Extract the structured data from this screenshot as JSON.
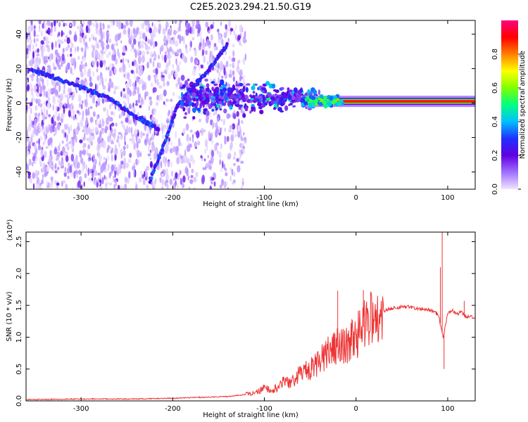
{
  "title": "C2E5.2023.294.21.50.G19",
  "colors": {
    "snr_line": "#ee3333",
    "axis": "#000000",
    "background": "#ffffff"
  },
  "chart_data": [
    {
      "type": "heatmap",
      "xlabel": "Height of straight line (km)",
      "ylabel": "Frequency (Hz)",
      "xlim": [
        -360,
        130
      ],
      "ylim": [
        -50,
        48
      ],
      "xticks": [
        -300,
        -200,
        -100,
        0,
        100
      ],
      "yticks": [
        -40,
        -20,
        0,
        20,
        40
      ],
      "colorbar": {
        "label": "Normalized spectral amplitude",
        "range": [
          0.0,
          1.0
        ],
        "ticks": [
          "0.0",
          "0.2",
          "0.4",
          "0.6",
          "0.8"
        ],
        "colormap": [
          "#f0e4ff",
          "#a070ff",
          "#6000e0",
          "#2030ff",
          "#00c0ff",
          "#00ff80",
          "#80ff00",
          "#ffff00",
          "#ff8000",
          "#ff0000",
          "#ff0080"
        ]
      },
      "features": [
        {
          "kind": "doppler-line",
          "x": [
            -355,
            -330,
            -300,
            -270,
            -240,
            -215
          ],
          "y": [
            19,
            15,
            9,
            3,
            -8,
            -15
          ]
        },
        {
          "kind": "doppler-line",
          "x": [
            -225,
            -210,
            -195,
            -180,
            -160,
            -140
          ],
          "y": [
            -45,
            -25,
            -2,
            8,
            20,
            34
          ]
        },
        {
          "kind": "carrier",
          "x": [
            -60,
            130
          ],
          "y": [
            1,
            1
          ]
        }
      ]
    },
    {
      "type": "line",
      "xlabel": "Height of straight line (km)",
      "ylabel": "SNR (10 * v/v)",
      "y_multiplier": "(x10⁴)",
      "xlim": [
        -360,
        130
      ],
      "ylim": [
        0,
        2.65
      ],
      "xticks": [
        -300,
        -200,
        -100,
        0,
        100
      ],
      "yticks": [
        "0.0",
        "0.5",
        "1.0",
        "1.5",
        "2.0",
        "2.5"
      ],
      "series": [
        {
          "x": [
            -360,
            -300,
            -250,
            -200,
            -180,
            -160,
            -140,
            -120,
            -110,
            -100,
            -90,
            -80,
            -70,
            -60,
            -50,
            -40,
            -30,
            -20,
            -10,
            0,
            10,
            20,
            30,
            40,
            50,
            60,
            70,
            80,
            85,
            90,
            95,
            100,
            105,
            110,
            115,
            120,
            125,
            130
          ],
          "y": [
            0.02,
            0.03,
            0.03,
            0.04,
            0.05,
            0.06,
            0.07,
            0.1,
            0.12,
            0.2,
            0.18,
            0.28,
            0.3,
            0.45,
            0.5,
            0.6,
            0.8,
            0.85,
            0.9,
            1.0,
            1.2,
            1.35,
            1.42,
            1.45,
            1.48,
            1.47,
            1.45,
            1.43,
            1.4,
            1.35,
            1.0,
            1.38,
            1.42,
            1.36,
            1.4,
            1.32,
            1.34,
            1.3
          ]
        }
      ],
      "spikes": [
        {
          "x": -20,
          "y": 1.73
        },
        {
          "x": 8,
          "y": 1.74
        },
        {
          "x": 92,
          "y": 2.1
        },
        {
          "x": 94,
          "y": 2.65
        },
        {
          "x": 96,
          "y": 0.5
        },
        {
          "x": 118,
          "y": 1.57
        }
      ]
    }
  ]
}
